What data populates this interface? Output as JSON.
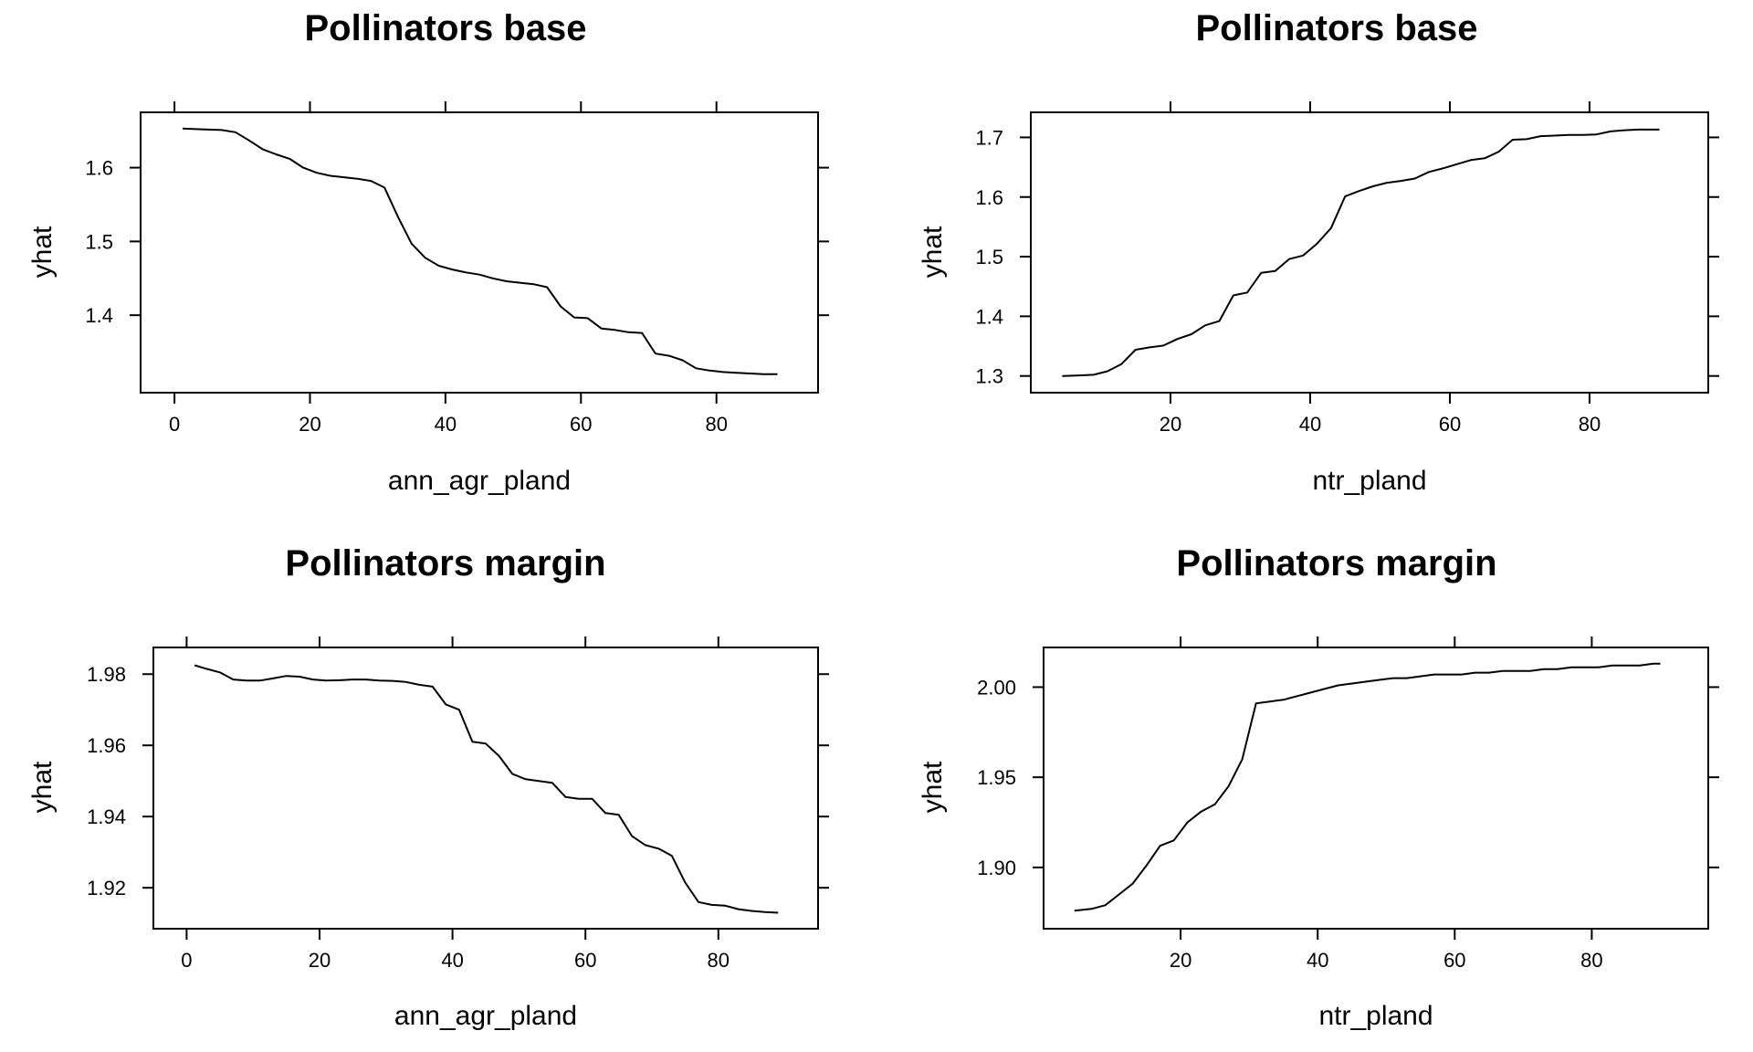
{
  "chart_data": [
    {
      "type": "line",
      "title": "Pollinators base",
      "xlabel": "ann_agr_pland",
      "ylabel": "yhat",
      "xlim": [
        -5,
        95
      ],
      "ylim": [
        1.295,
        1.675
      ],
      "xticks": [
        0,
        20,
        40,
        60,
        80
      ],
      "yticks": [
        1.4,
        1.5,
        1.6
      ],
      "ytick_labels": [
        "1.4",
        "1.5",
        "1.6"
      ],
      "x": [
        1.2,
        4,
        7,
        9,
        11,
        13,
        15,
        17,
        19,
        21,
        23,
        25,
        27,
        29,
        31,
        33,
        35,
        37,
        39,
        41,
        43,
        45,
        47,
        49,
        51,
        53,
        55,
        57,
        59,
        61,
        63,
        65,
        67,
        69,
        71,
        73,
        75,
        77,
        79,
        81,
        83,
        85,
        87,
        89
      ],
      "y": [
        1.653,
        1.652,
        1.651,
        1.648,
        1.637,
        1.625,
        1.618,
        1.612,
        1.6,
        1.593,
        1.589,
        1.587,
        1.585,
        1.582,
        1.573,
        1.533,
        1.497,
        1.478,
        1.467,
        1.462,
        1.458,
        1.455,
        1.45,
        1.446,
        1.444,
        1.442,
        1.438,
        1.412,
        1.397,
        1.396,
        1.382,
        1.38,
        1.377,
        1.376,
        1.348,
        1.345,
        1.339,
        1.328,
        1.325,
        1.323,
        1.322,
        1.321,
        1.32,
        1.32
      ]
    },
    {
      "type": "line",
      "title": "Pollinators base",
      "xlabel": "ntr_pland",
      "ylabel": "yhat",
      "xlim": [
        0,
        97
      ],
      "ylim": [
        1.272,
        1.742
      ],
      "xticks": [
        20,
        40,
        60,
        80
      ],
      "yticks": [
        1.3,
        1.4,
        1.5,
        1.6,
        1.7
      ],
      "ytick_labels": [
        "1.3",
        "1.4",
        "1.5",
        "1.6",
        "1.7"
      ],
      "x": [
        4.5,
        7,
        9,
        11,
        13,
        15,
        17,
        19,
        21,
        23,
        25,
        27,
        29,
        31,
        33,
        35,
        37,
        39,
        41,
        43,
        45,
        47,
        49,
        51,
        53,
        55,
        57,
        59,
        61,
        63,
        65,
        67,
        69,
        71,
        73,
        75,
        77,
        79,
        81,
        83,
        85,
        87,
        89,
        90
      ],
      "y": [
        1.3,
        1.301,
        1.302,
        1.308,
        1.32,
        1.344,
        1.348,
        1.351,
        1.362,
        1.37,
        1.385,
        1.392,
        1.435,
        1.44,
        1.473,
        1.476,
        1.496,
        1.502,
        1.522,
        1.548,
        1.601,
        1.61,
        1.618,
        1.624,
        1.627,
        1.631,
        1.642,
        1.648,
        1.655,
        1.662,
        1.665,
        1.676,
        1.696,
        1.697,
        1.702,
        1.703,
        1.704,
        1.704,
        1.705,
        1.71,
        1.712,
        1.713,
        1.713,
        1.713
      ]
    },
    {
      "type": "line",
      "title": "Pollinators margin",
      "xlabel": "ann_agr_pland",
      "ylabel": "yhat",
      "xlim": [
        -5,
        95
      ],
      "ylim": [
        1.9085,
        1.9875
      ],
      "xticks": [
        0,
        20,
        40,
        60,
        80
      ],
      "yticks": [
        1.92,
        1.94,
        1.96,
        1.98
      ],
      "ytick_labels": [
        "1.92",
        "1.94",
        "1.96",
        "1.98"
      ],
      "x": [
        1.2,
        3,
        5,
        7,
        9,
        11,
        13,
        15,
        17,
        19,
        21,
        23,
        25,
        27,
        29,
        31,
        33,
        35,
        37,
        39,
        41,
        43,
        45,
        47,
        49,
        51,
        53,
        55,
        57,
        59,
        61,
        63,
        65,
        67,
        69,
        71,
        73,
        75,
        77,
        79,
        81,
        83,
        85,
        87,
        89
      ],
      "y": [
        1.9825,
        1.9815,
        1.9805,
        1.9785,
        1.9782,
        1.9782,
        1.9788,
        1.9795,
        1.9793,
        1.9785,
        1.9782,
        1.9783,
        1.9785,
        1.9785,
        1.9782,
        1.9781,
        1.9778,
        1.977,
        1.9765,
        1.9715,
        1.97,
        1.961,
        1.9605,
        1.957,
        1.952,
        1.9505,
        1.95,
        1.9495,
        1.9455,
        1.945,
        1.945,
        1.941,
        1.9405,
        1.9345,
        1.932,
        1.931,
        1.929,
        1.9215,
        1.916,
        1.9152,
        1.915,
        1.914,
        1.9135,
        1.9132,
        1.913
      ]
    },
    {
      "type": "line",
      "title": "Pollinators margin",
      "xlabel": "ntr_pland",
      "ylabel": "yhat",
      "xlim": [
        0,
        97
      ],
      "ylim": [
        1.866,
        2.022
      ],
      "xticks": [
        20,
        40,
        60,
        80
      ],
      "yticks": [
        1.9,
        1.95,
        2.0
      ],
      "ytick_labels": [
        "1.90",
        "1.95",
        "2.00"
      ],
      "x": [
        4.5,
        7,
        9,
        11,
        13,
        15,
        17,
        19,
        21,
        23,
        25,
        27,
        29,
        31,
        33,
        35,
        37,
        39,
        41,
        43,
        45,
        47,
        49,
        51,
        53,
        55,
        57,
        59,
        61,
        63,
        65,
        67,
        69,
        71,
        73,
        75,
        77,
        79,
        81,
        83,
        85,
        87,
        89,
        90
      ],
      "y": [
        1.876,
        1.877,
        1.879,
        1.885,
        1.891,
        1.901,
        1.912,
        1.915,
        1.925,
        1.931,
        1.935,
        1.945,
        1.96,
        1.991,
        1.992,
        1.993,
        1.995,
        1.997,
        1.999,
        2.001,
        2.002,
        2.003,
        2.004,
        2.005,
        2.005,
        2.006,
        2.007,
        2.007,
        2.007,
        2.008,
        2.008,
        2.009,
        2.009,
        2.009,
        2.01,
        2.01,
        2.011,
        2.011,
        2.011,
        2.012,
        2.012,
        2.012,
        2.013,
        2.013
      ]
    }
  ]
}
